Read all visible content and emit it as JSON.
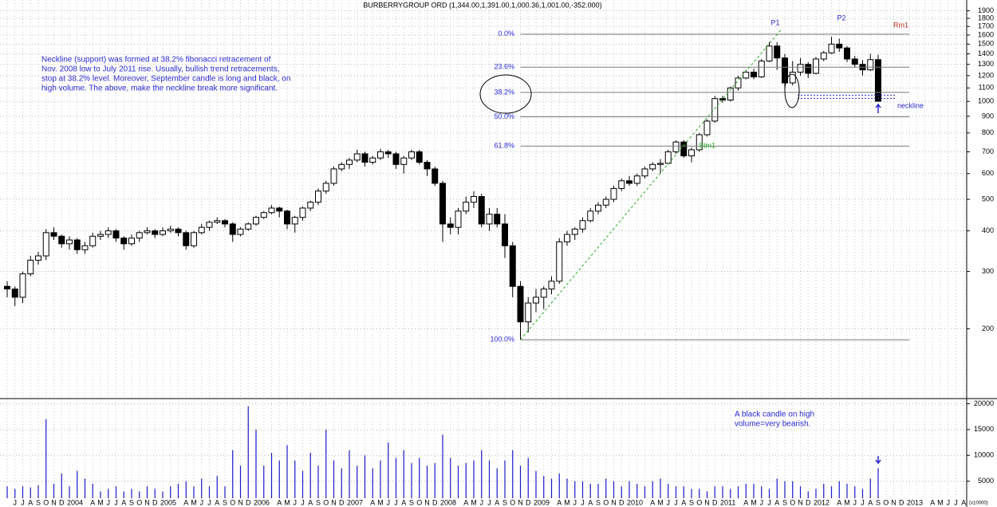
{
  "chart_data": {
    "type": "candlestick",
    "title": "BURBERRYGROUP ORD (1,344.00,1,391.00,1,000.36,1,001.00,-352.000)",
    "categories": [
      null,
      "J",
      "J",
      "A",
      "S",
      "O",
      "N",
      "D",
      "2004",
      null,
      null,
      "A",
      "M",
      "J",
      "J",
      "A",
      "S",
      "O",
      "N",
      "D",
      "2005",
      null,
      null,
      "A",
      "M",
      "J",
      "J",
      "A",
      "S",
      "O",
      "N",
      "D",
      "2006",
      null,
      null,
      "A",
      "M",
      "J",
      "J",
      "A",
      "S",
      "O",
      "N",
      "D",
      "2007",
      null,
      null,
      "A",
      "M",
      "J",
      "J",
      "A",
      "S",
      "O",
      "N",
      "D",
      "2008",
      null,
      null,
      "A",
      "M",
      "J",
      "J",
      "A",
      "S",
      "O",
      "N",
      "D",
      "2009",
      null,
      null,
      "A",
      "M",
      "J",
      "J",
      "A",
      "S",
      "O",
      "N",
      "D",
      "2010",
      null,
      null,
      "A",
      "M",
      "J",
      "J",
      "A",
      "S",
      "O",
      "N",
      "D",
      "2011",
      null,
      null,
      "A",
      "M",
      "J",
      "J",
      "A",
      "S",
      "O",
      "N",
      "D",
      "2012",
      null,
      null,
      "A",
      "M",
      "J",
      "J",
      "A",
      "S",
      "O",
      "N",
      "D",
      "2013",
      null,
      null,
      "A",
      "M",
      "J",
      "J",
      "A"
    ],
    "open": [
      270,
      265,
      250,
      295,
      325,
      335,
      395,
      385,
      365,
      375,
      350,
      360,
      385,
      390,
      400,
      380,
      365,
      380,
      395,
      400,
      390,
      400,
      405,
      395,
      360,
      395,
      410,
      425,
      430,
      420,
      390,
      405,
      420,
      440,
      455,
      470,
      460,
      420,
      440,
      470,
      490,
      530,
      560,
      620,
      640,
      660,
      690,
      650,
      670,
      700,
      690,
      640,
      670,
      700,
      650,
      620,
      560,
      420,
      410,
      460,
      490,
      510,
      420,
      450,
      420,
      360,
      270,
      210,
      240,
      250,
      265,
      280,
      370,
      390,
      405,
      430,
      460,
      480,
      500,
      540,
      570,
      560,
      590,
      620,
      640,
      645,
      700,
      750,
      680,
      710,
      790,
      870,
      1020,
      1010,
      1100,
      1180,
      1230,
      1190,
      1330,
      1480,
      1360,
      1140,
      1230,
      1300,
      1220,
      1350,
      1410,
      1500,
      1460,
      1350,
      1300,
      1250,
      1344,
      null,
      null,
      null,
      null,
      null,
      null,
      null,
      null,
      null,
      null,
      null
    ],
    "high": [
      280,
      270,
      300,
      335,
      345,
      405,
      410,
      390,
      385,
      380,
      370,
      395,
      400,
      410,
      405,
      385,
      390,
      400,
      410,
      405,
      410,
      415,
      410,
      400,
      400,
      420,
      430,
      440,
      435,
      425,
      410,
      425,
      445,
      460,
      480,
      475,
      465,
      445,
      475,
      495,
      540,
      570,
      630,
      650,
      670,
      710,
      700,
      680,
      715,
      710,
      700,
      680,
      710,
      710,
      660,
      630,
      570,
      440,
      470,
      510,
      530,
      520,
      470,
      470,
      450,
      370,
      280,
      250,
      265,
      270,
      290,
      380,
      400,
      410,
      440,
      470,
      490,
      510,
      550,
      580,
      590,
      600,
      630,
      650,
      665,
      710,
      760,
      760,
      720,
      800,
      880,
      1040,
      1040,
      1110,
      1200,
      1250,
      1260,
      1350,
      1520,
      1520,
      1400,
      1330,
      1360,
      1320,
      1370,
      1430,
      1580,
      1560,
      1480,
      1380,
      1340,
      1400,
      1391,
      null,
      null,
      null,
      null,
      null,
      null,
      null,
      null,
      null,
      null,
      null
    ],
    "low": [
      250,
      235,
      240,
      290,
      315,
      325,
      375,
      355,
      350,
      340,
      340,
      355,
      375,
      380,
      370,
      350,
      360,
      370,
      390,
      380,
      385,
      395,
      385,
      350,
      355,
      390,
      400,
      420,
      410,
      370,
      385,
      400,
      415,
      435,
      450,
      440,
      405,
      395,
      430,
      460,
      480,
      520,
      550,
      610,
      620,
      650,
      630,
      640,
      660,
      670,
      620,
      600,
      660,
      640,
      590,
      550,
      370,
      390,
      390,
      450,
      470,
      410,
      400,
      410,
      330,
      250,
      185,
      195,
      225,
      230,
      255,
      275,
      360,
      375,
      395,
      425,
      450,
      470,
      490,
      530,
      550,
      550,
      580,
      610,
      600,
      640,
      690,
      670,
      650,
      700,
      780,
      860,
      990,
      1000,
      1080,
      1170,
      1170,
      1180,
      1320,
      1250,
      1080,
      1120,
      1200,
      1180,
      1210,
      1330,
      1400,
      1420,
      1320,
      1270,
      1200,
      1240,
      1000.36,
      null,
      null,
      null,
      null,
      null,
      null,
      null,
      null,
      null,
      null,
      null
    ],
    "close": [
      265,
      250,
      295,
      325,
      335,
      395,
      385,
      365,
      375,
      350,
      360,
      385,
      390,
      400,
      380,
      365,
      380,
      395,
      400,
      390,
      400,
      405,
      395,
      360,
      395,
      410,
      425,
      430,
      420,
      390,
      405,
      420,
      440,
      455,
      470,
      460,
      420,
      440,
      470,
      490,
      530,
      560,
      620,
      640,
      660,
      690,
      650,
      670,
      700,
      690,
      640,
      670,
      700,
      650,
      620,
      560,
      420,
      410,
      460,
      490,
      510,
      420,
      450,
      420,
      360,
      270,
      210,
      240,
      250,
      265,
      280,
      370,
      390,
      405,
      430,
      460,
      480,
      500,
      540,
      570,
      560,
      590,
      620,
      640,
      645,
      700,
      750,
      680,
      710,
      790,
      870,
      1020,
      1010,
      1100,
      1180,
      1230,
      1190,
      1330,
      1480,
      1360,
      1140,
      1230,
      1300,
      1220,
      1350,
      1410,
      1500,
      1460,
      1350,
      1300,
      1250,
      1344,
      1001,
      null,
      null,
      null,
      null,
      null,
      null,
      null,
      null,
      null,
      null,
      null
    ],
    "volume": [
      4000,
      3500,
      4000,
      3800,
      4200,
      17000,
      4500,
      6500,
      4000,
      7000,
      5500,
      4500,
      3000,
      3500,
      4000,
      3000,
      3500,
      3000,
      4000,
      3500,
      3000,
      4000,
      4500,
      5000,
      4000,
      5500,
      4000,
      6000,
      4000,
      11000,
      8000,
      19500,
      15000,
      8000,
      10500,
      9000,
      12000,
      9000,
      7000,
      10500,
      8000,
      15000,
      9000,
      7500,
      11000,
      8000,
      10000,
      7500,
      9000,
      12500,
      9500,
      11000,
      8500,
      9500,
      8000,
      8500,
      14000,
      9500,
      8000,
      8500,
      9000,
      11000,
      9000,
      7500,
      9000,
      11000,
      8000,
      9500,
      7000,
      6000,
      5500,
      6500,
      5500,
      5000,
      5000,
      4500,
      4500,
      5500,
      5000,
      4000,
      5000,
      4500,
      4000,
      5000,
      5500,
      4500,
      4000,
      4000,
      3500,
      3500,
      3000,
      4000,
      4000,
      3500,
      4000,
      4500,
      4500,
      4000,
      3500,
      5500,
      5000,
      5000,
      4000,
      3000,
      3500,
      4500,
      4000,
      5000,
      4500,
      4000,
      3500,
      5500,
      7500,
      null,
      null,
      null,
      null,
      null,
      null,
      null,
      null,
      null,
      null,
      null
    ],
    "up_color": "#ffffff",
    "down_color": "#000000",
    "volume_color": "#1a1acc",
    "log_scale": true,
    "grid": true,
    "ylim": [
      122,
      2050
    ],
    "yticks": [
      200,
      300,
      400,
      500,
      600,
      700,
      800,
      900,
      1000,
      1100,
      1200,
      1300,
      1400,
      1500,
      1600,
      1700,
      1800,
      1900
    ],
    "volume_ylim": [
      0,
      21000
    ],
    "volume_yticks": [
      5000,
      10000,
      15000,
      20000
    ],
    "volume_unit": "(x10000)",
    "fibonacci": [
      {
        "label": "0.0%",
        "value": 1610
      },
      {
        "label": "23.6%",
        "value": 1274
      },
      {
        "label": "38.2%",
        "value": 1066
      },
      {
        "label": "50.0%",
        "value": 897
      },
      {
        "label": "61.8%",
        "value": 729
      },
      {
        "label": "100.0%",
        "value": 185
      }
    ],
    "neckline": {
      "label": "neckline",
      "value": 1045
    },
    "trendline_label": "Stm1",
    "peak_labels": [
      "P1",
      "P2"
    ],
    "resistance_label": "Rm1",
    "note": [
      "Neckline (support) was formed at 38.2% fibonacci retracement of",
      "Nov. 2008 low to July 2011 rise. Usually, bullish trend retracements,",
      "stop at 38.2% level. Moreover, September candle is long and black, on",
      "high volume. The above, make the neckline break more significant."
    ],
    "volume_note": [
      "A black candle on high",
      "volume=very bearish."
    ]
  }
}
